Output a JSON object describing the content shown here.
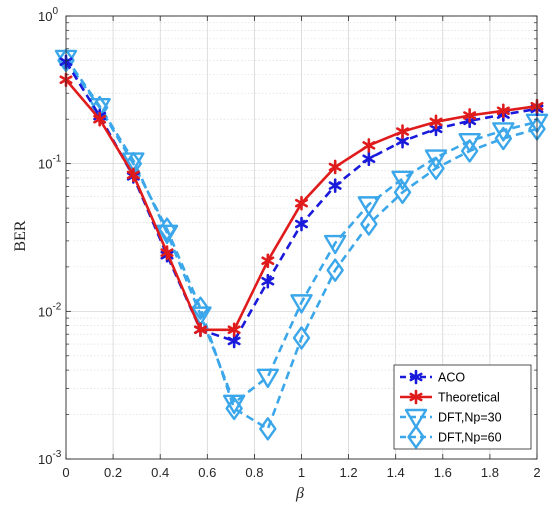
{
  "chart_data": {
    "type": "line",
    "xlabel": "β",
    "ylabel": "BER",
    "xlim": [
      0,
      2
    ],
    "ylim": [
      0.001,
      1
    ],
    "yscale": "log",
    "grid": true,
    "minor_grid": true,
    "legend_position": "bottom-right",
    "x_ticks": [
      "0",
      "0.2",
      "0.4",
      "0.6",
      "0.8",
      "1",
      "1.2",
      "1.4",
      "1.6",
      "1.8",
      "2"
    ],
    "y_ticks": [
      {
        "value": 0.001,
        "base": "10",
        "exp": "-3"
      },
      {
        "value": 0.01,
        "base": "10",
        "exp": "-2"
      },
      {
        "value": 0.1,
        "base": "10",
        "exp": "-1"
      },
      {
        "value": 1,
        "base": "10",
        "exp": "0"
      }
    ],
    "series": [
      {
        "name": "ACO",
        "color": "#1a1adb",
        "line_style": "dashed",
        "marker": "asterisk",
        "x": [
          0,
          0.143,
          0.286,
          0.429,
          0.571,
          0.714,
          0.857,
          1.0,
          1.143,
          1.286,
          1.429,
          1.571,
          1.714,
          1.857,
          2.0
        ],
        "y": [
          0.49,
          0.21,
          0.082,
          0.024,
          0.0075,
          0.0063,
          0.016,
          0.039,
          0.071,
          0.108,
          0.142,
          0.172,
          0.195,
          0.215,
          0.235
        ]
      },
      {
        "name": "Theoretical",
        "color": "#e01b1b",
        "line_style": "solid",
        "marker": "asterisk",
        "x": [
          0,
          0.143,
          0.286,
          0.429,
          0.571,
          0.714,
          0.857,
          1.0,
          1.143,
          1.286,
          1.429,
          1.571,
          1.714,
          1.857,
          2.0
        ],
        "y": [
          0.37,
          0.2,
          0.084,
          0.025,
          0.0075,
          0.0075,
          0.022,
          0.054,
          0.095,
          0.133,
          0.165,
          0.192,
          0.212,
          0.228,
          0.245
        ]
      },
      {
        "name": "DFT,Np=30",
        "color": "#3ba7ea",
        "line_style": "dashed",
        "marker": "triangle-down",
        "x": [
          0,
          0.143,
          0.286,
          0.429,
          0.571,
          0.714,
          0.857,
          1.0,
          1.143,
          1.286,
          1.429,
          1.571,
          1.714,
          1.857,
          2.0
        ],
        "y": [
          0.52,
          0.245,
          0.105,
          0.034,
          0.0095,
          0.0024,
          0.0036,
          0.0115,
          0.029,
          0.053,
          0.079,
          0.11,
          0.142,
          0.168,
          0.192
        ]
      },
      {
        "name": "DFT,Np=60",
        "color": "#3ba7ea",
        "line_style": "dashed",
        "marker": "diamond",
        "x": [
          0,
          0.143,
          0.286,
          0.429,
          0.571,
          0.714,
          0.857,
          1.0,
          1.143,
          1.286,
          1.429,
          1.571,
          1.714,
          1.857,
          2.0
        ],
        "y": [
          0.5,
          0.24,
          0.1,
          0.036,
          0.0105,
          0.0022,
          0.0016,
          0.0066,
          0.019,
          0.039,
          0.064,
          0.093,
          0.122,
          0.148,
          0.172
        ]
      }
    ]
  }
}
